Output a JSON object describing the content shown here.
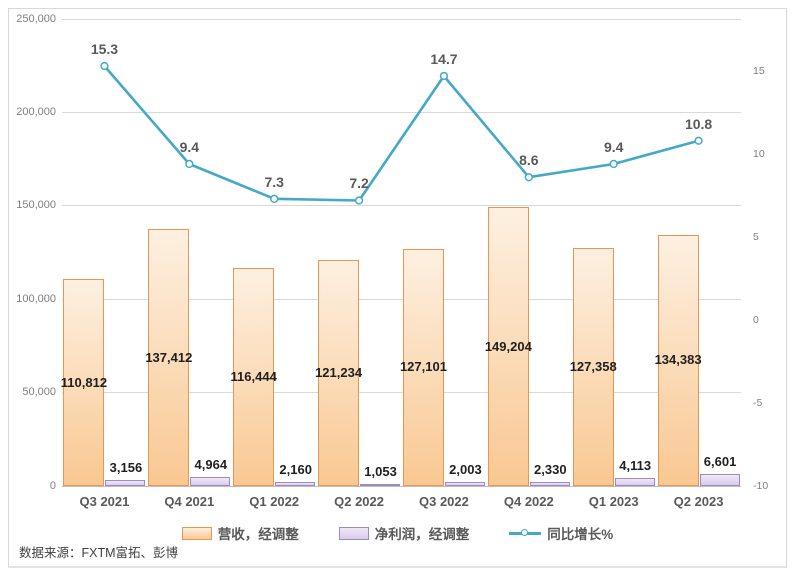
{
  "chart_data": {
    "type": "combo",
    "categories": [
      "Q3 2021",
      "Q4 2021",
      "Q1 2022",
      "Q2 2022",
      "Q3 2022",
      "Q4 2022",
      "Q1 2023",
      "Q2 2023"
    ],
    "series": [
      {
        "name": "营收，经调整",
        "chart_type": "bar",
        "axis": "left",
        "values": [
          110812,
          137412,
          116444,
          121234,
          127101,
          149204,
          127358,
          134383
        ],
        "labels": [
          "110,812",
          "137,412",
          "116,444",
          "121,234",
          "127,101",
          "149,204",
          "127,358",
          "134,383"
        ]
      },
      {
        "name": "净利润，经调整",
        "chart_type": "bar",
        "axis": "left",
        "values": [
          3156,
          4964,
          2160,
          1053,
          2003,
          2330,
          4113,
          6601
        ],
        "labels": [
          "3,156",
          "4,964",
          "2,160",
          "1,053",
          "2,003",
          "2,330",
          "4,113",
          "6,601"
        ]
      },
      {
        "name": "同比增长%",
        "chart_type": "line",
        "axis": "right",
        "values": [
          15.3,
          9.4,
          7.3,
          7.2,
          14.7,
          8.6,
          9.4,
          10.8
        ],
        "labels": [
          "15.3",
          "9.4",
          "7.3",
          "7.2",
          "14.7",
          "8.6",
          "9.4",
          "10.8"
        ]
      }
    ],
    "left_axis": {
      "min": 0,
      "max": 250000,
      "step": 50000,
      "tick_labels": [
        "250,000",
        "200,000",
        "150,000",
        "100,000",
        "50,000",
        "0"
      ]
    },
    "right_axis": {
      "min": -10,
      "max": 15,
      "step": 5,
      "tick_labels": [
        "15",
        "10",
        "5",
        "0",
        "-5",
        "-10"
      ]
    },
    "grid": true,
    "legend_position": "bottom"
  },
  "colors": {
    "revenue_fill_top": "#FDF0E1",
    "revenue_fill_bottom": "#F9C892",
    "revenue_border": "#EA9552",
    "profit_fill_top": "#EFE9F7",
    "profit_fill_bottom": "#D9CCEC",
    "profit_border": "#9C8AC0",
    "growth_line": "#44A9C7",
    "growth_marker_fill": "#FFFFFF",
    "bar_label": "#1F1F1F",
    "line_label": "#595959",
    "axis_tick": "#7F7F7F",
    "category_label": "#595959",
    "gridline": "#D9D9D9",
    "axis_line": "#BFBFBF"
  },
  "source_note": "数据来源：FXTM富拓、彭博"
}
